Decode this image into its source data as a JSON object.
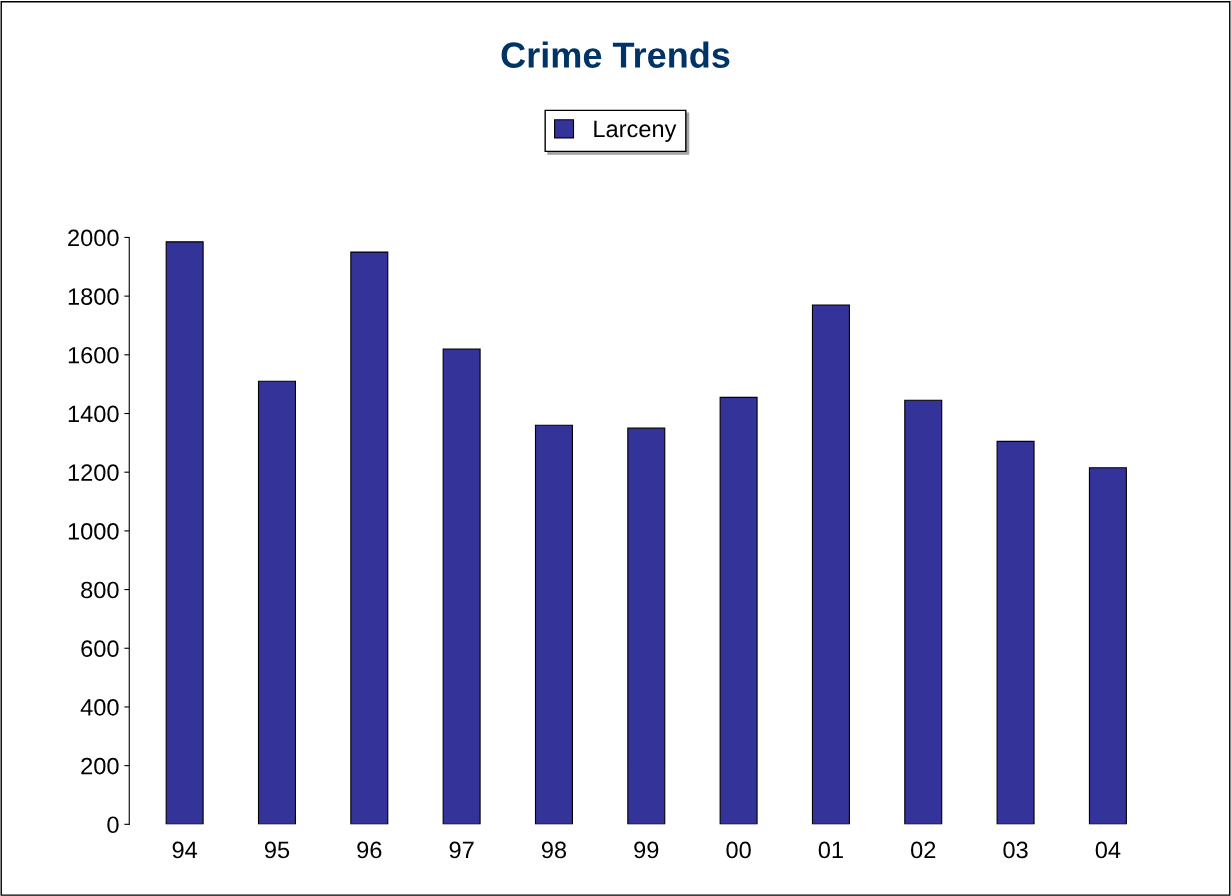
{
  "chart_data": {
    "type": "bar",
    "title": "Crime Trends",
    "categories": [
      "94",
      "95",
      "96",
      "97",
      "98",
      "99",
      "00",
      "01",
      "02",
      "03",
      "04"
    ],
    "series": [
      {
        "name": "Larceny",
        "color": "#333399",
        "values": [
          1985,
          1510,
          1950,
          1620,
          1360,
          1350,
          1455,
          1770,
          1445,
          1305,
          1215
        ]
      }
    ],
    "ylim": [
      0,
      2000
    ],
    "yticks": [
      0,
      200,
      400,
      600,
      800,
      1000,
      1200,
      1400,
      1600,
      1800,
      2000
    ],
    "grid": false,
    "legend": "top"
  }
}
